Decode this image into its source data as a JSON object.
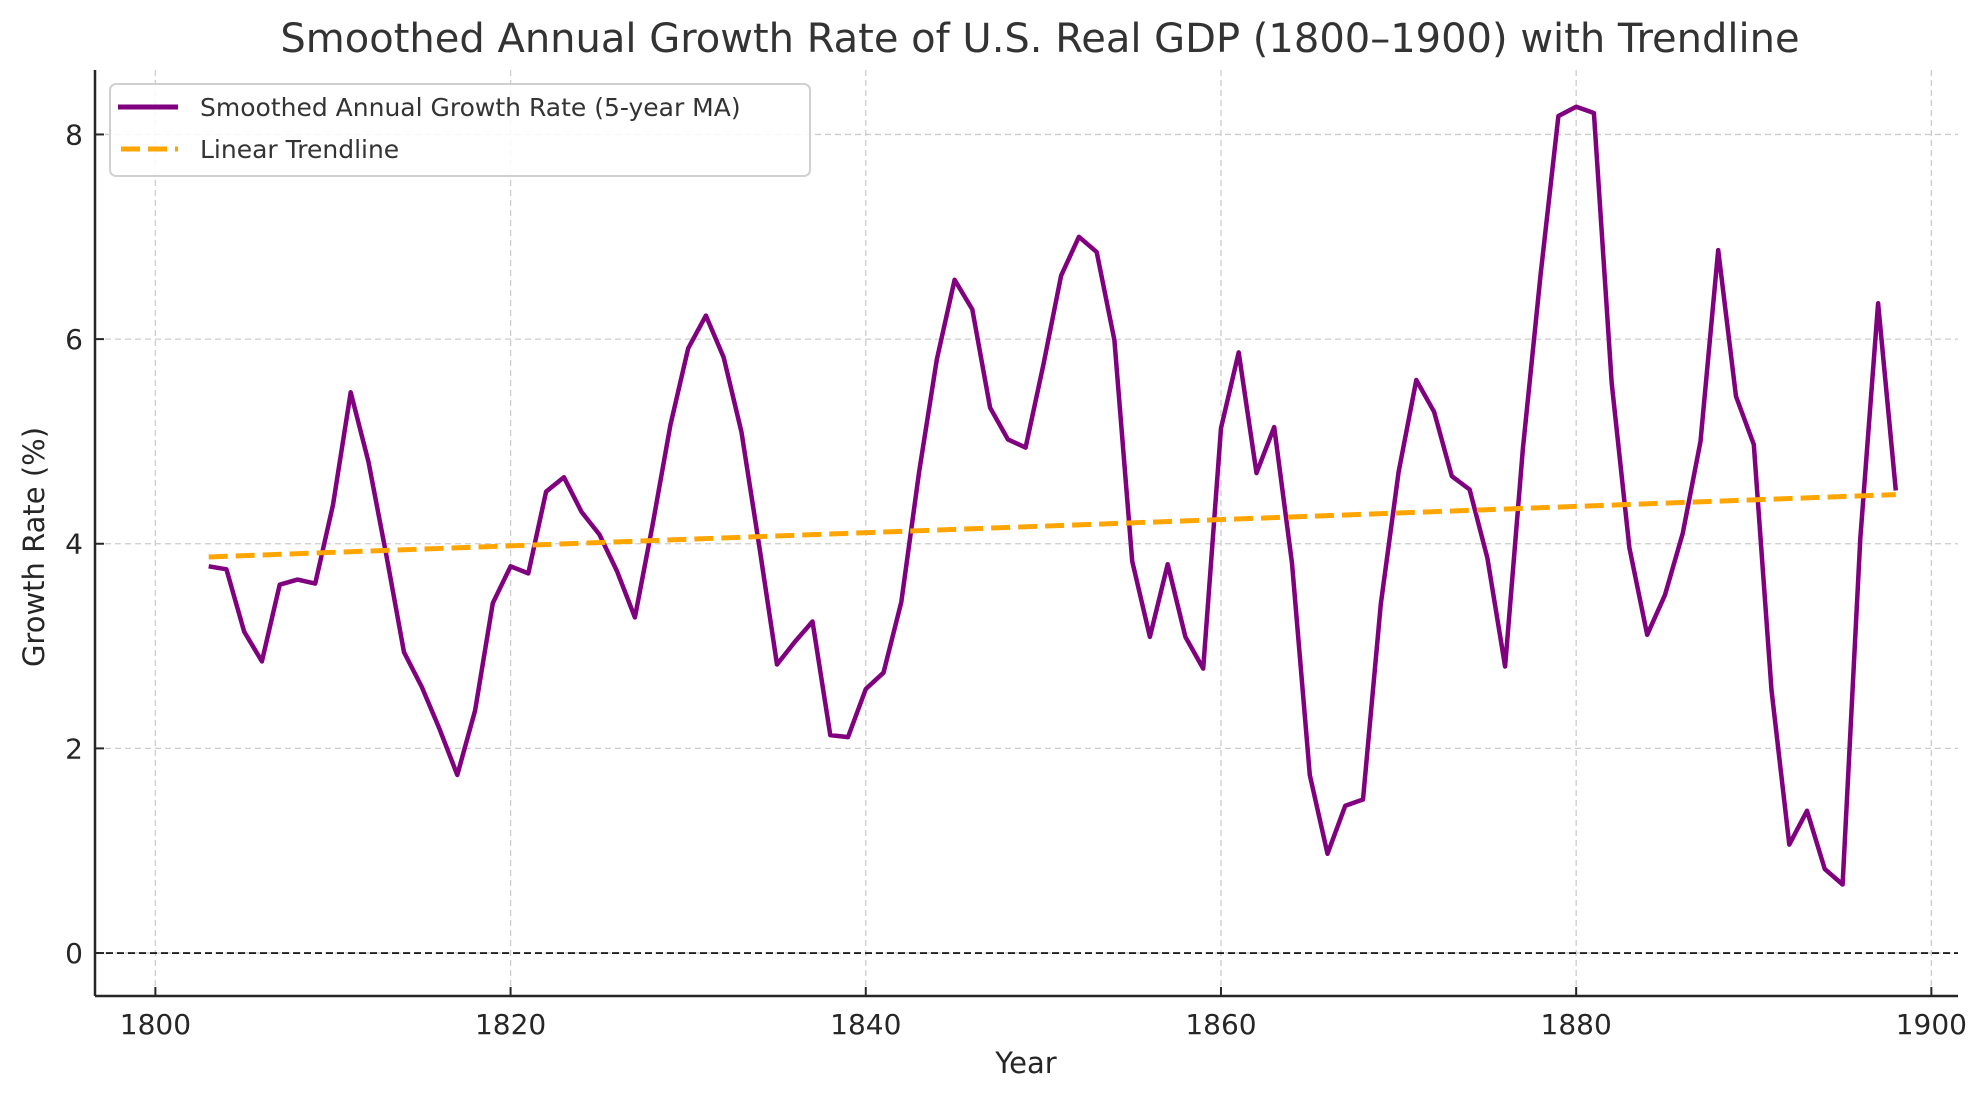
{
  "chart_data": {
    "type": "line",
    "title": "Smoothed Annual Growth Rate of U.S. Real GDP (1800–1900) with Trendline",
    "xlabel": "Year",
    "ylabel": "Growth Rate (%)",
    "xlim": [
      1796.6,
      1901.5
    ],
    "ylim": [
      -0.42,
      8.63
    ],
    "xticks": [
      1800,
      1820,
      1840,
      1860,
      1880,
      1900
    ],
    "yticks": [
      0,
      2,
      4,
      6,
      8
    ],
    "xtick_labels": [
      "1800",
      "1820",
      "1840",
      "1860",
      "1880",
      "1900"
    ],
    "ytick_labels": [
      "0",
      "2",
      "4",
      "6",
      "8"
    ],
    "grid": true,
    "zero_line": {
      "y": 0,
      "style": "dashed",
      "color": "#000000"
    },
    "legend": {
      "position": "top-left",
      "entries": [
        {
          "label": "Smoothed Annual Growth Rate (5-year MA)",
          "color": "#800080",
          "style": "solid"
        },
        {
          "label": "Linear Trendline",
          "color": "#FFA500",
          "style": "dashed"
        }
      ]
    },
    "series": [
      {
        "name": "Smoothed Annual Growth Rate (5-year MA)",
        "color": "#800080",
        "style": "solid",
        "x": [
          1803,
          1804,
          1805,
          1806,
          1807,
          1808,
          1809,
          1810,
          1811,
          1812,
          1813,
          1814,
          1815,
          1816,
          1817,
          1818,
          1819,
          1820,
          1821,
          1822,
          1823,
          1824,
          1825,
          1826,
          1827,
          1828,
          1829,
          1830,
          1831,
          1832,
          1833,
          1834,
          1835,
          1836,
          1837,
          1838,
          1839,
          1840,
          1841,
          1842,
          1843,
          1844,
          1845,
          1846,
          1847,
          1848,
          1849,
          1850,
          1851,
          1852,
          1853,
          1854,
          1855,
          1856,
          1857,
          1858,
          1859,
          1860,
          1861,
          1862,
          1863,
          1864,
          1865,
          1866,
          1867,
          1868,
          1869,
          1870,
          1871,
          1872,
          1873,
          1874,
          1875,
          1876,
          1877,
          1878,
          1879,
          1880,
          1881,
          1882,
          1883,
          1884,
          1885,
          1886,
          1887,
          1888,
          1889,
          1890,
          1891,
          1892,
          1893,
          1894,
          1895,
          1896,
          1897,
          1898
        ],
        "values": [
          3.78,
          3.75,
          3.14,
          2.85,
          3.6,
          3.65,
          3.61,
          4.38,
          5.48,
          4.8,
          3.89,
          2.94,
          2.6,
          2.19,
          1.74,
          2.37,
          3.42,
          3.78,
          3.71,
          4.51,
          4.65,
          4.31,
          4.09,
          3.73,
          3.28,
          4.19,
          5.16,
          5.91,
          6.23,
          5.82,
          5.09,
          3.98,
          2.82,
          3.04,
          3.24,
          2.13,
          2.11,
          2.58,
          2.74,
          3.43,
          4.7,
          5.8,
          6.58,
          6.29,
          5.33,
          5.02,
          4.94,
          5.75,
          6.62,
          7.0,
          6.85,
          5.99,
          3.83,
          3.09,
          3.8,
          3.09,
          2.78,
          5.13,
          5.87,
          4.69,
          5.14,
          3.81,
          1.74,
          0.97,
          1.44,
          1.5,
          3.41,
          4.7,
          5.6,
          5.29,
          4.66,
          4.53,
          3.86,
          2.8,
          4.93,
          6.63,
          8.18,
          8.27,
          8.21,
          5.57,
          3.96,
          3.11,
          3.5,
          4.1,
          5.0,
          6.87,
          5.44,
          4.97,
          2.57,
          1.06,
          1.39,
          0.82,
          0.67,
          4.05,
          6.35,
          4.52
        ]
      },
      {
        "name": "Linear Trendline",
        "color": "#FFA500",
        "style": "dashed",
        "x": [
          1803,
          1898
        ],
        "values": [
          3.87,
          4.48
        ]
      }
    ]
  }
}
